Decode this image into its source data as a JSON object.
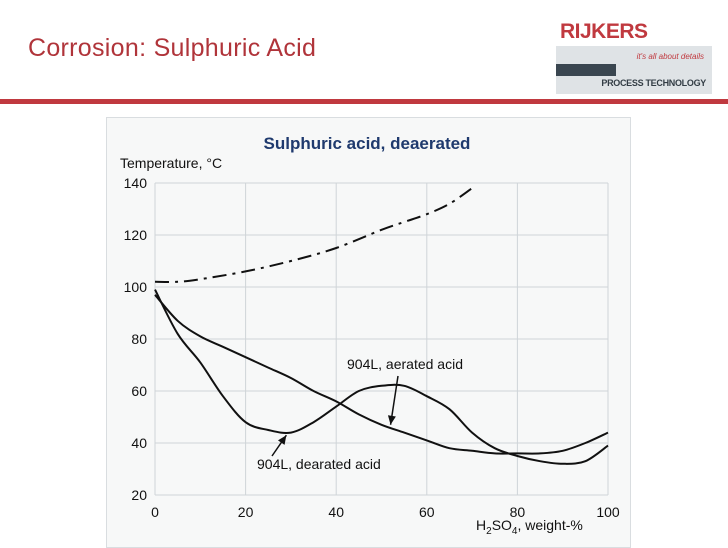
{
  "slide": {
    "title": "Corrosion: Sulphuric Acid"
  },
  "logo": {
    "brand": "RIJKERS",
    "tagline": "it's all about details",
    "subtitle": "PROCESS TECHNOLOGY",
    "brand_color": "#c0393f"
  },
  "chart_data": {
    "type": "line",
    "title": "Sulphuric acid, deaerated",
    "ylabel": "Temperature, °C",
    "xlabel_main": "H",
    "xlabel_sub1": "2",
    "xlabel_mid": "SO",
    "xlabel_sub2": "4",
    "xlabel_tail": ", weight-%",
    "xlim": [
      0,
      100
    ],
    "ylim": [
      20,
      140
    ],
    "x_ticks": [
      0,
      20,
      40,
      60,
      80,
      100
    ],
    "y_ticks": [
      20,
      40,
      60,
      80,
      100,
      120,
      140
    ],
    "grid": true,
    "series": [
      {
        "x": [
          0,
          5,
          10,
          20,
          30,
          40,
          50,
          55,
          60,
          65,
          70
        ],
        "y": [
          102,
          102,
          103,
          106,
          110,
          115,
          122,
          125,
          128,
          132,
          138
        ],
        "dash": "dash-dot"
      },
      {
        "name": "904L, dearated acid",
        "x": [
          0,
          5,
          10,
          15,
          20,
          25,
          30,
          35,
          40,
          45,
          50,
          55,
          60,
          65,
          70,
          75,
          80,
          85,
          90,
          95,
          100
        ],
        "y": [
          97,
          87,
          81,
          77,
          73,
          69,
          65,
          60,
          56,
          51,
          47,
          44,
          41,
          38,
          37,
          36,
          36,
          36,
          37,
          40,
          44
        ]
      },
      {
        "name": "904L, aerated acid",
        "x": [
          0,
          5,
          10,
          15,
          20,
          25,
          30,
          35,
          40,
          45,
          50,
          55,
          60,
          65,
          70,
          75,
          80,
          85,
          90,
          95,
          100
        ],
        "y": [
          99,
          82,
          71,
          58,
          48,
          45,
          44,
          48,
          54,
          60,
          62,
          62,
          58,
          53,
          44,
          38,
          35,
          33,
          32,
          33,
          39
        ]
      }
    ],
    "annotations": [
      {
        "text": "904L, aerated acid",
        "series": "904L, aerated acid",
        "arrow_to": [
          52,
          47
        ]
      },
      {
        "text": "904L, dearated acid",
        "series": "904L, dearated acid",
        "arrow_to": [
          29,
          43
        ]
      }
    ],
    "line_color": "#111111",
    "title_color": "#1f3a6e"
  }
}
